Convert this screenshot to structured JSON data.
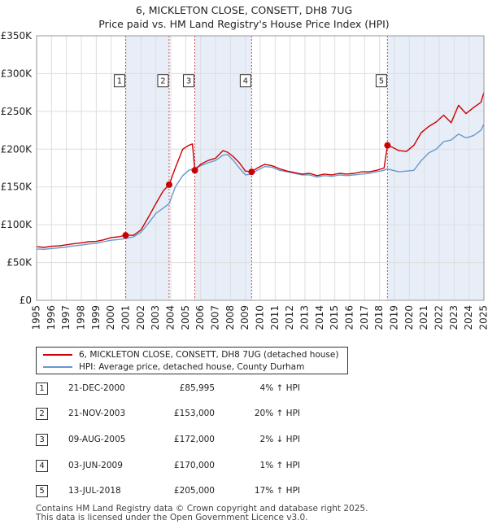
{
  "chart_data": {
    "type": "line",
    "title": "6, MICKLETON CLOSE, CONSETT, DH8 7UG",
    "subtitle": "Price paid vs. HM Land Registry's House Price Index (HPI)",
    "ylim": [
      0,
      350000
    ],
    "xlim": [
      1995,
      2025
    ],
    "y_ticks": [
      0,
      50000,
      100000,
      150000,
      200000,
      250000,
      300000,
      350000
    ],
    "y_tick_labels": [
      "£0",
      "£50K",
      "£100K",
      "£150K",
      "£200K",
      "£250K",
      "£300K",
      "£350K"
    ],
    "x_ticks": [
      1995,
      1996,
      1997,
      1998,
      1999,
      2000,
      2001,
      2002,
      2003,
      2004,
      2005,
      2006,
      2007,
      2008,
      2009,
      2010,
      2011,
      2012,
      2013,
      2014,
      2015,
      2016,
      2017,
      2018,
      2019,
      2020,
      2021,
      2022,
      2023,
      2024,
      2025
    ],
    "x_tick_labels": [
      "1995",
      "1996",
      "1997",
      "1998",
      "1999",
      "2000",
      "2001",
      "2002",
      "2003",
      "2004",
      "2005",
      "2006",
      "2007",
      "2008",
      "2009",
      "2010",
      "2011",
      "2012",
      "2013",
      "2014",
      "2015",
      "2016",
      "2017",
      "2018",
      "2019",
      "2020",
      "2021",
      "2022",
      "2023",
      "2024",
      "2025"
    ],
    "grid": true,
    "series": [
      {
        "name": "6, MICKLETON CLOSE, CONSETT, DH8 7UG (detached house)",
        "color": "#cc0000",
        "x": [
          1995.0,
          1995.5,
          1996.0,
          1996.5,
          1997.0,
          1997.5,
          1998.0,
          1998.5,
          1999.0,
          1999.5,
          2000.0,
          2000.5,
          2000.97,
          2001.5,
          2002.0,
          2002.5,
          2003.0,
          2003.5,
          2003.89,
          2004.3,
          2004.8,
          2005.2,
          2005.45,
          2005.61,
          2006.0,
          2006.5,
          2007.0,
          2007.5,
          2007.8,
          2008.2,
          2008.6,
          2009.0,
          2009.42,
          2009.8,
          2010.3,
          2010.8,
          2011.3,
          2011.8,
          2012.3,
          2012.8,
          2013.3,
          2013.8,
          2014.3,
          2014.8,
          2015.3,
          2015.8,
          2016.3,
          2016.8,
          2017.3,
          2017.8,
          2018.3,
          2018.53,
          2018.9,
          2019.3,
          2019.8,
          2020.3,
          2020.8,
          2021.3,
          2021.8,
          2022.3,
          2022.8,
          2023.3,
          2023.8,
          2024.3,
          2024.8,
          2025.0
        ],
        "y": [
          71000,
          70000,
          71500,
          72000,
          73500,
          75000,
          76000,
          77500,
          78000,
          80000,
          83000,
          84000,
          85995,
          86000,
          93000,
          110000,
          128000,
          145000,
          153000,
          175000,
          200000,
          205000,
          207000,
          172000,
          180000,
          185000,
          188000,
          198000,
          196000,
          190000,
          182000,
          171000,
          170000,
          175000,
          180000,
          178000,
          174000,
          171000,
          169000,
          167000,
          168000,
          165000,
          167000,
          166000,
          168000,
          167000,
          168000,
          170000,
          170000,
          172000,
          175000,
          205000,
          202000,
          198000,
          197000,
          205000,
          222000,
          230000,
          236000,
          245000,
          235000,
          258000,
          247000,
          255000,
          262000,
          275000
        ]
      },
      {
        "name": "HPI: Average price, detached house, County Durham",
        "color": "#6699cc",
        "x": [
          1995.0,
          1995.5,
          1996.0,
          1996.5,
          1997.0,
          1997.5,
          1998.0,
          1998.5,
          1999.0,
          1999.5,
          2000.0,
          2000.5,
          2001.0,
          2001.5,
          2002.0,
          2002.5,
          2003.0,
          2003.5,
          2003.89,
          2004.3,
          2004.8,
          2005.2,
          2005.6,
          2006.0,
          2006.5,
          2007.0,
          2007.5,
          2007.8,
          2008.2,
          2008.6,
          2009.0,
          2009.4,
          2009.8,
          2010.3,
          2010.8,
          2011.3,
          2011.8,
          2012.3,
          2012.8,
          2013.3,
          2013.8,
          2014.3,
          2014.8,
          2015.3,
          2015.8,
          2016.3,
          2016.8,
          2017.3,
          2017.8,
          2018.3,
          2018.5,
          2018.9,
          2019.3,
          2019.8,
          2020.3,
          2020.8,
          2021.3,
          2021.8,
          2022.3,
          2022.8,
          2023.3,
          2023.8,
          2024.3,
          2024.8,
          2025.0
        ],
        "y": [
          68000,
          67500,
          68500,
          69500,
          70500,
          72000,
          73000,
          74500,
          75500,
          77500,
          79500,
          80500,
          82000,
          84000,
          90000,
          102000,
          115000,
          122000,
          128000,
          150000,
          165000,
          172000,
          175000,
          178000,
          182000,
          185000,
          192000,
          193000,
          185000,
          175000,
          166000,
          167000,
          172000,
          177000,
          176000,
          172000,
          170000,
          168000,
          166000,
          166000,
          163000,
          165000,
          164000,
          166000,
          165000,
          166000,
          167000,
          168000,
          170000,
          172000,
          174000,
          172000,
          170000,
          171000,
          172000,
          185000,
          195000,
          200000,
          210000,
          212000,
          220000,
          215000,
          218000,
          225000,
          233000
        ]
      }
    ],
    "sale_markers": [
      {
        "label": "1",
        "x": 2000.97,
        "y": 85995
      },
      {
        "label": "2",
        "x": 2003.89,
        "y": 153000
      },
      {
        "label": "3",
        "x": 2005.61,
        "y": 172000
      },
      {
        "label": "4",
        "x": 2009.42,
        "y": 170000
      },
      {
        "label": "5",
        "x": 2018.53,
        "y": 205000
      }
    ],
    "shaded_periods": [
      [
        2000.97,
        2003.89
      ],
      [
        2005.61,
        2009.42
      ],
      [
        2018.53,
        2025.0
      ]
    ],
    "marker_label_y": 290000
  },
  "legend": {
    "items": [
      {
        "label": "6, MICKLETON CLOSE, CONSETT, DH8 7UG (detached house)",
        "color": "#cc0000"
      },
      {
        "label": "HPI: Average price, detached house, County Durham",
        "color": "#6699cc"
      }
    ]
  },
  "sales": [
    {
      "num": "1",
      "date": "21-DEC-2000",
      "price": "£85,995",
      "hpi": "4% ↑ HPI"
    },
    {
      "num": "2",
      "date": "21-NOV-2003",
      "price": "£153,000",
      "hpi": "20% ↑ HPI"
    },
    {
      "num": "3",
      "date": "09-AUG-2005",
      "price": "£172,000",
      "hpi": "2% ↓ HPI"
    },
    {
      "num": "4",
      "date": "03-JUN-2009",
      "price": "£170,000",
      "hpi": "1% ↑ HPI"
    },
    {
      "num": "5",
      "date": "13-JUL-2018",
      "price": "£205,000",
      "hpi": "17% ↑ HPI"
    }
  ],
  "footer": {
    "line1": "Contains HM Land Registry data © Crown copyright and database right 2025.",
    "line2": "This data is licensed under the Open Government Licence v3.0."
  },
  "colors": {
    "shade": "#e8eef8",
    "grid": "#dddddd",
    "marker_line": "#dd4444"
  }
}
